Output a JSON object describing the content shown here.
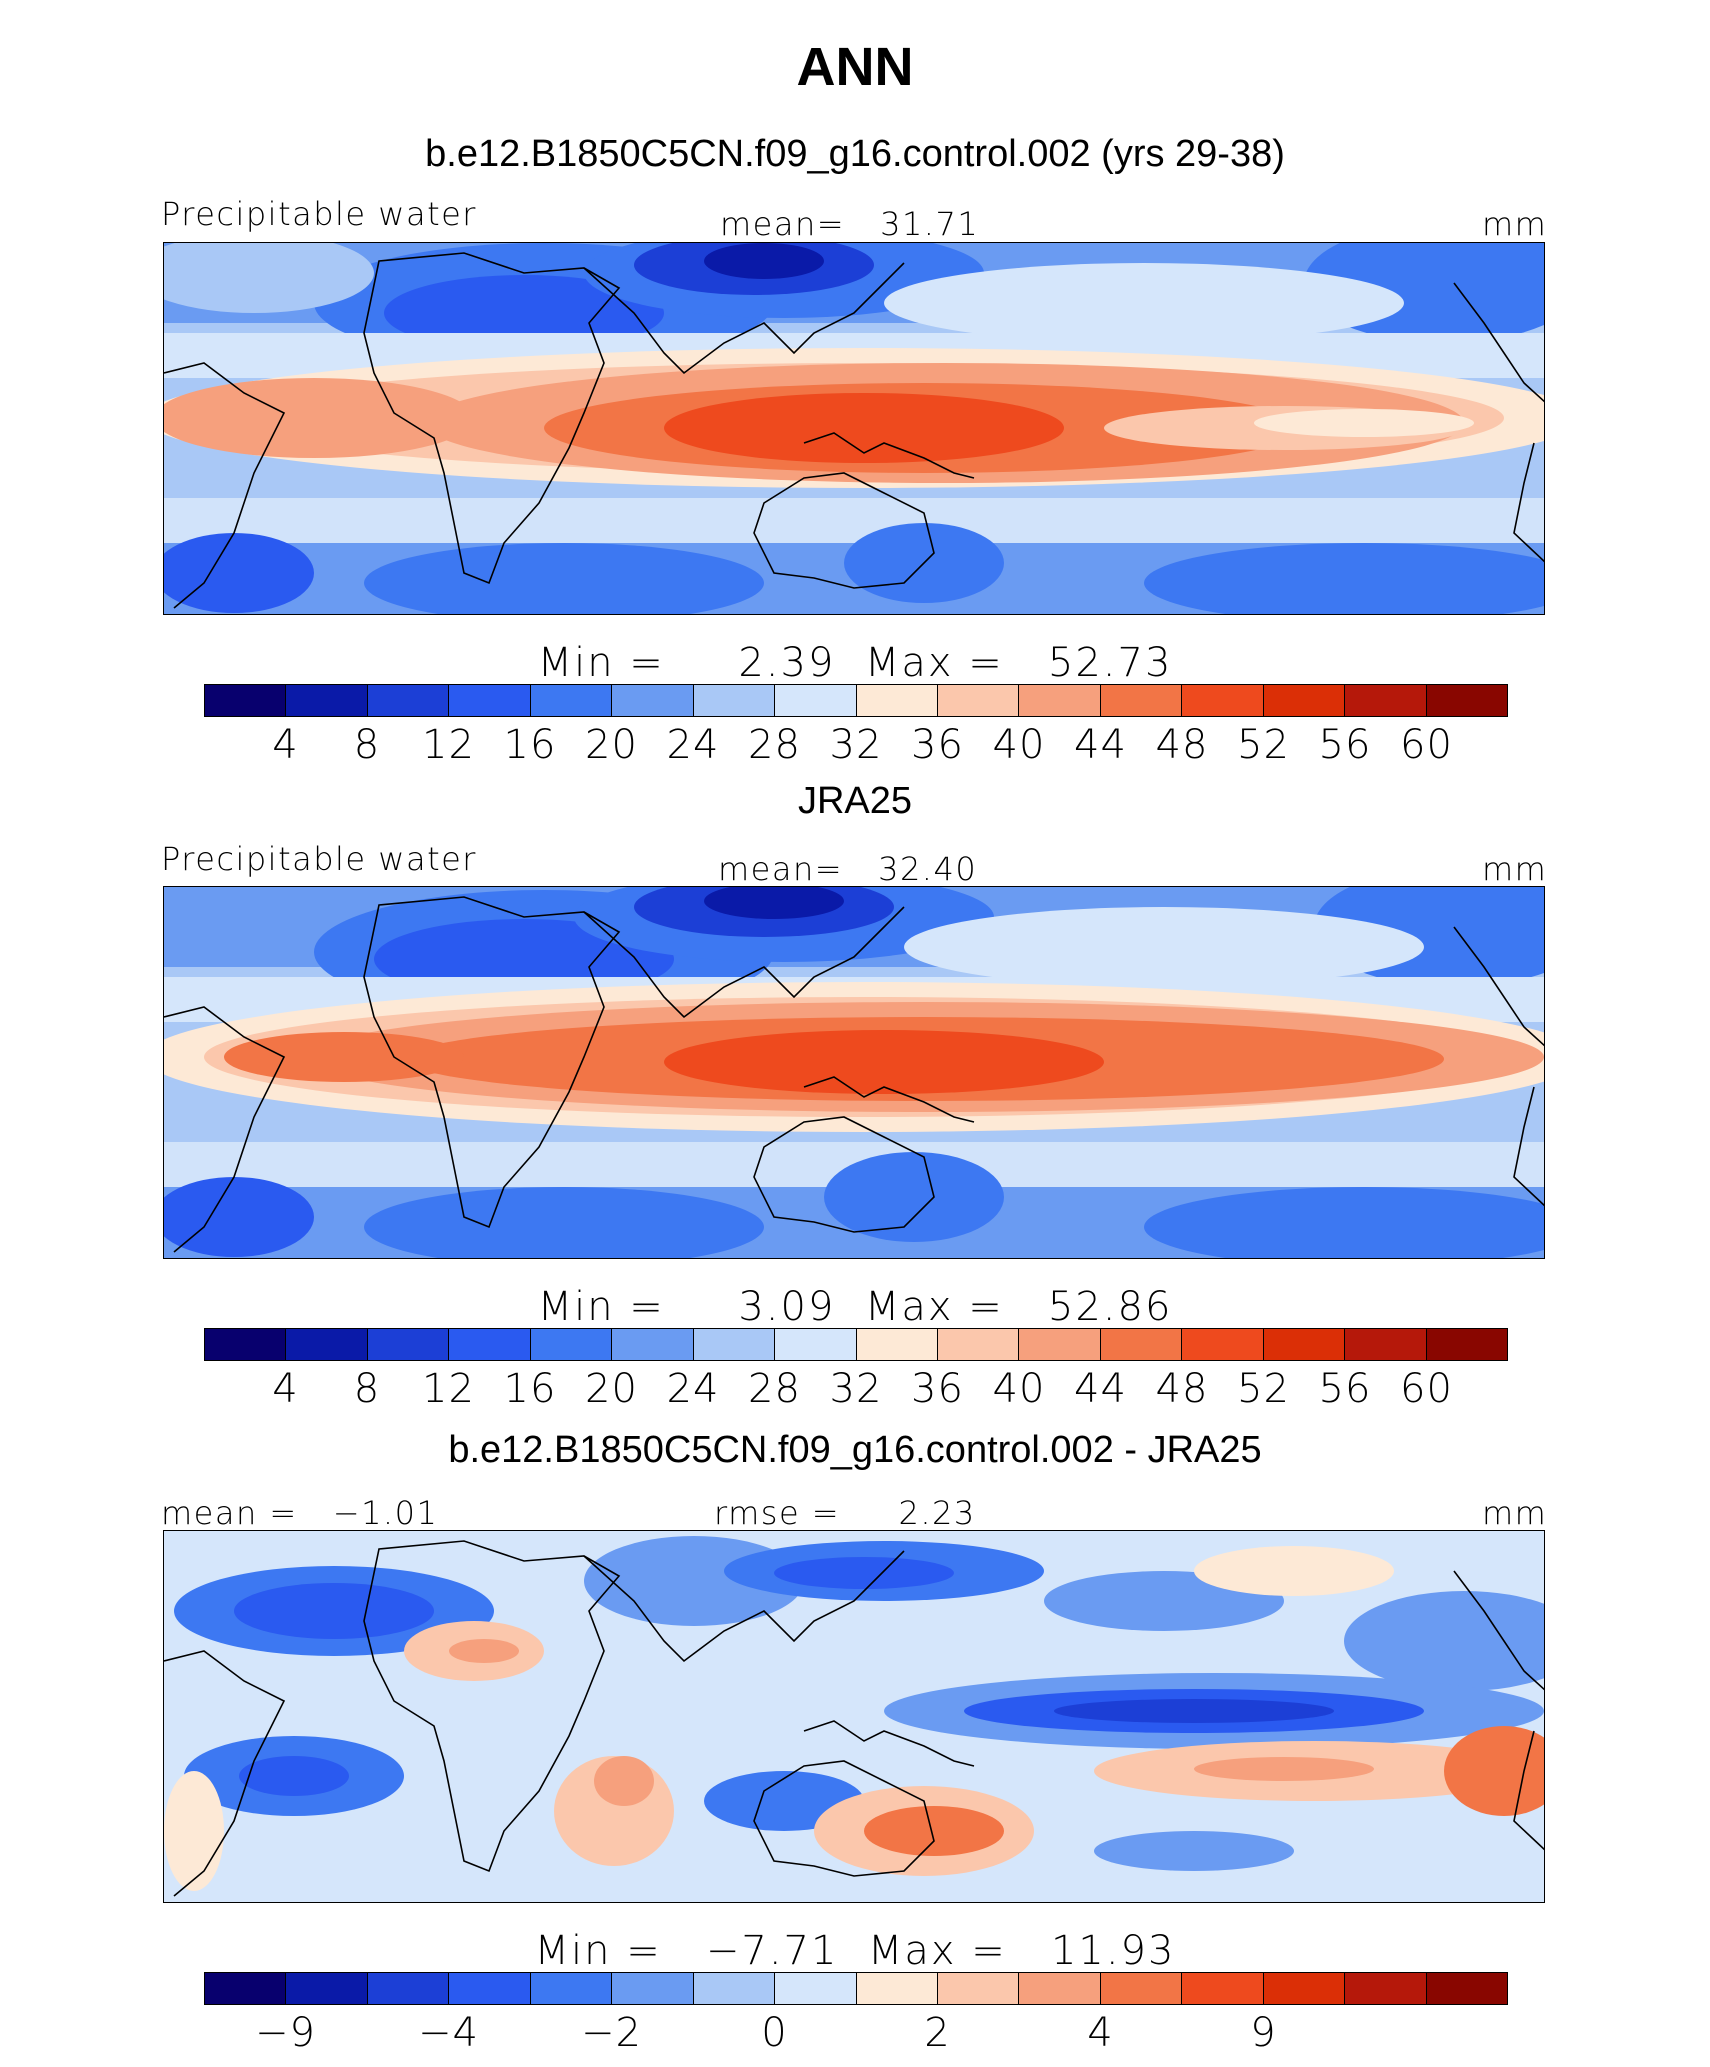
{
  "title": "ANN",
  "panels": [
    {
      "title": "b.e12.B1850C5CN.f09_g16.control.002 (yrs 29-38)",
      "left_label": "Precipitable water",
      "center_label": "mean=   31.71",
      "units": "mm",
      "minmax": "Min =     2.39  Max =   52.73",
      "colorbar": [
        "#08006e",
        "#0a1aa8",
        "#1c3fd6",
        "#2a5af0",
        "#3d78f2",
        "#6a9bf2",
        "#a9c8f6",
        "#d5e6fb",
        "#fde9d6",
        "#fbc7ac",
        "#f6a07d",
        "#f27546",
        "#ee4a1e",
        "#db2f06",
        "#b5180a",
        "#890600"
      ],
      "ticks": [
        "4",
        "8",
        "12",
        "16",
        "20",
        "24",
        "28",
        "32",
        "36",
        "40",
        "44",
        "48",
        "52",
        "56",
        "60"
      ]
    },
    {
      "title": "JRA25",
      "left_label": "Precipitable water",
      "center_label": "mean=   32.40",
      "units": "mm",
      "minmax": "Min =     3.09  Max =   52.86",
      "colorbar": [
        "#08006e",
        "#0a1aa8",
        "#1c3fd6",
        "#2a5af0",
        "#3d78f2",
        "#6a9bf2",
        "#a9c8f6",
        "#d5e6fb",
        "#fde9d6",
        "#fbc7ac",
        "#f6a07d",
        "#f27546",
        "#ee4a1e",
        "#db2f06",
        "#b5180a",
        "#890600"
      ],
      "ticks": [
        "4",
        "8",
        "12",
        "16",
        "20",
        "24",
        "28",
        "32",
        "36",
        "40",
        "44",
        "48",
        "52",
        "56",
        "60"
      ]
    },
    {
      "title": "b.e12.B1850C5CN.f09_g16.control.002 - JRA25",
      "left_label": "mean =   −1.01",
      "center_label": "rmse =     2.23",
      "units": "mm",
      "minmax": "Min =   −7.71  Max =   11.93",
      "colorbar": [
        "#08006e",
        "#0a1aa8",
        "#1c3fd6",
        "#2a5af0",
        "#3d78f2",
        "#6a9bf2",
        "#a9c8f6",
        "#d5e6fb",
        "#fde9d6",
        "#fbc7ac",
        "#f6a07d",
        "#f27546",
        "#ee4a1e",
        "#db2f06",
        "#b5180a",
        "#890600"
      ],
      "ticks": [
        "−9",
        "",
        "−4",
        "",
        "−2",
        "",
        "0",
        "",
        "2",
        "",
        "4",
        "",
        "9",
        ""
      ]
    }
  ],
  "chart_data": [
    {
      "type": "heatmap",
      "title": "b.e12.B1850C5CN.f09_g16.control.002 (yrs 29-38)",
      "variable": "Precipitable water",
      "units": "mm",
      "mean": 31.71,
      "min": 2.39,
      "max": 52.73,
      "contour_levels": [
        4,
        8,
        12,
        16,
        20,
        24,
        28,
        32,
        36,
        40,
        44,
        48,
        52,
        56,
        60
      ]
    },
    {
      "type": "heatmap",
      "title": "JRA25",
      "variable": "Precipitable water",
      "units": "mm",
      "mean": 32.4,
      "min": 3.09,
      "max": 52.86,
      "contour_levels": [
        4,
        8,
        12,
        16,
        20,
        24,
        28,
        32,
        36,
        40,
        44,
        48,
        52,
        56,
        60
      ]
    },
    {
      "type": "heatmap",
      "title": "b.e12.B1850C5CN.f09_g16.control.002 - JRA25",
      "units": "mm",
      "mean": -1.01,
      "rmse": 2.23,
      "min": -7.71,
      "max": 11.93,
      "contour_levels": [
        -9,
        -4,
        -2,
        0,
        2,
        4,
        9
      ]
    }
  ]
}
